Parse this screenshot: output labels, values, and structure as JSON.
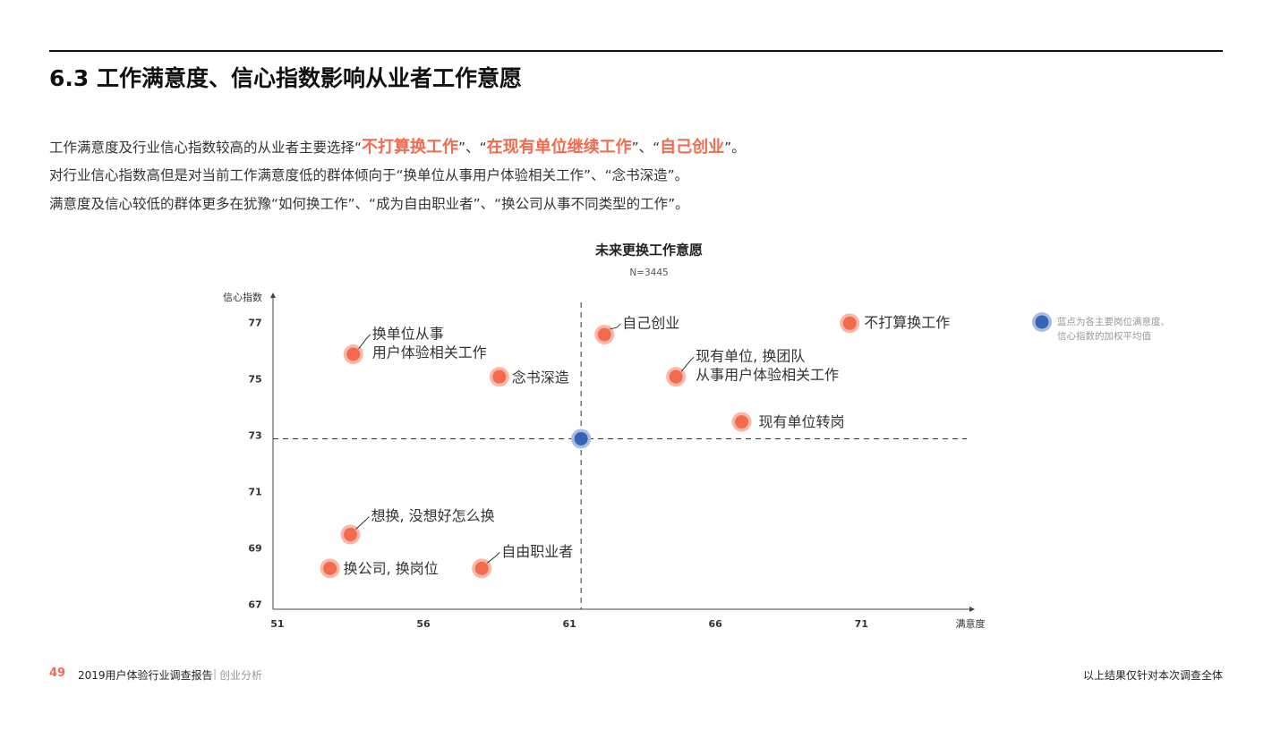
{
  "header": {
    "title": "6.3 工作满意度、信心指数影响从业者工作意愿"
  },
  "intro": [
    [
      {
        "text": "工作满意度及行业信心指数较高的从业者主要选择“"
      },
      {
        "text": "不打算换工作",
        "highlight": true
      },
      {
        "text": "”、“"
      },
      {
        "text": "在现有单位继续工作",
        "highlight": true
      },
      {
        "text": "”、“"
      },
      {
        "text": "自己创业",
        "highlight": true
      },
      {
        "text": "”。"
      }
    ],
    [
      {
        "text": "对行业信心指数高但是对当前工作满意度低的群体倾向于“换单位从事用户体验相关工作”、“念书深造”。"
      }
    ],
    [
      {
        "text": "满意度及信心较低的群体更多在犹豫“如何换工作”、“成为自由职业者”、“换公司从事不同类型的工作”。"
      }
    ]
  ],
  "chart_data": {
    "type": "scatter",
    "title": "未来更换工作意愿",
    "subtitle": "N=3445",
    "x_label": "满意度",
    "y_label": "信心指数",
    "xlim": [
      50.85,
      74.7
    ],
    "xticks": [
      51,
      56,
      61,
      66,
      71
    ],
    "ylim": [
      66.85,
      77.9
    ],
    "yticks": [
      67,
      69,
      71,
      73,
      75,
      77
    ],
    "grid": false,
    "crosshair": true,
    "series": [
      {
        "color": "#f26b4f",
        "x": [
          53.6,
          58.6,
          62.2,
          70.6,
          64.65,
          66.9,
          53.5,
          52.8,
          58.0
        ],
        "values": [
          75.9,
          75.1,
          76.6,
          77.0,
          75.1,
          73.5,
          69.5,
          68.3,
          68.3
        ],
        "labels": [
          [
            "换单位从事",
            "用户体验相关工作"
          ],
          [
            "念书深造"
          ],
          [
            "自己创业"
          ],
          [
            "不打算换工作"
          ],
          [
            "现有单位, 换团队",
            "从事用户体验相关工作"
          ],
          [
            "现有单位转岗"
          ],
          [
            "想换, 没想好怎么换"
          ],
          [
            "换公司, 换岗位"
          ],
          [
            "自由职业者"
          ]
        ]
      },
      {
        "name": "蓝点为各主要岗位满意度、信心指数的加权平均值",
        "color": "#3565b5",
        "x": [
          61.4
        ],
        "values": [
          72.9
        ]
      }
    ]
  },
  "footer": {
    "page": "49",
    "report": "2019用户体验行业调查报告",
    "separator": "|",
    "section": "创业分析",
    "note": "以上结果仅针对本次调查全体"
  }
}
